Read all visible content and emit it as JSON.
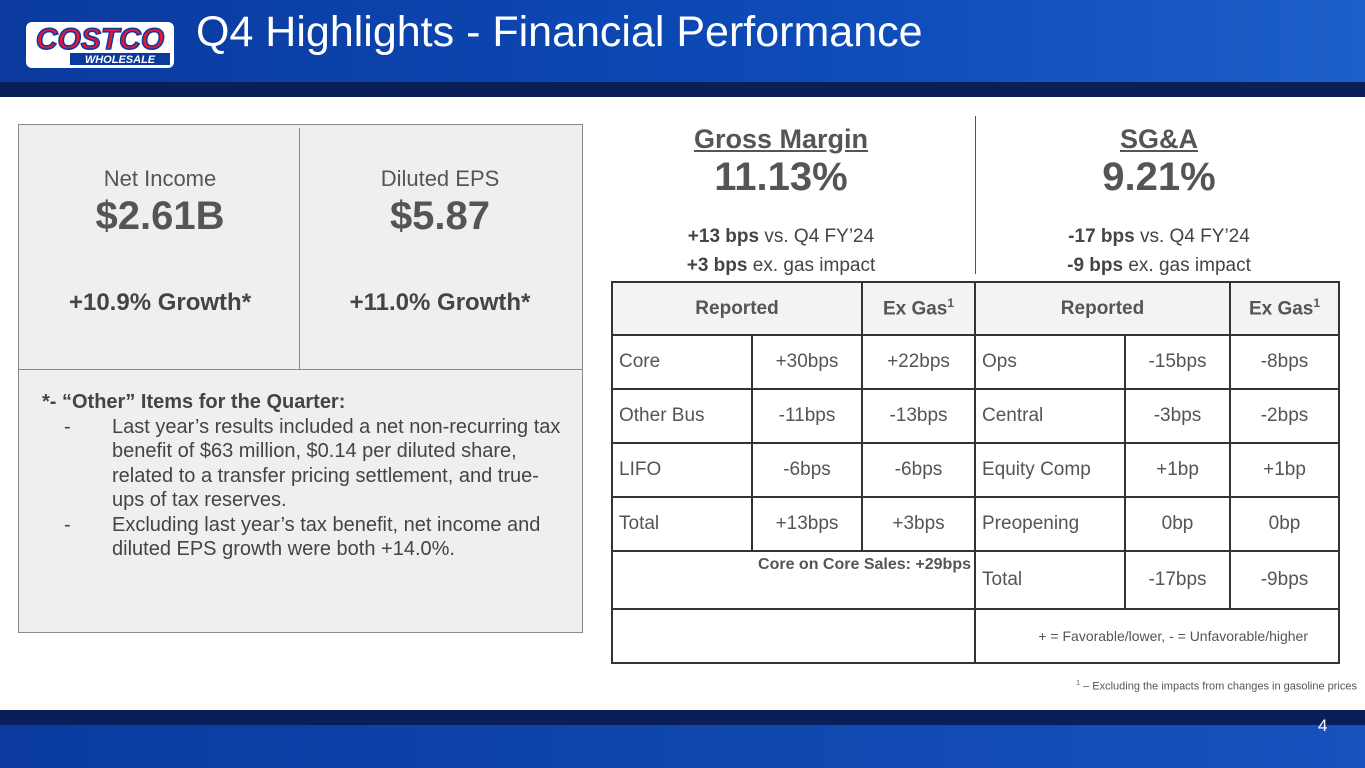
{
  "header": {
    "logo_top": "COSTCO",
    "logo_bottom": "WHOLESALE",
    "title": "Q4 Highlights - Financial Performance"
  },
  "kpis": [
    {
      "label": "Net Income",
      "value": "$2.61B",
      "growth": "+10.9% Growth*"
    },
    {
      "label": "Diluted EPS",
      "value": "$5.87",
      "growth": "+11.0% Growth*"
    }
  ],
  "notes": {
    "heading": "*- “Other” Items for the Quarter:",
    "bullet": "-",
    "items": [
      "Last year’s results included a net non-recurring tax benefit of $63 million, $0.14 per diluted share, related to a transfer pricing settlement, and true-ups of tax reserves.",
      "Excluding last year’s tax benefit, net income and diluted EPS growth were both +14.0%."
    ]
  },
  "metrics": [
    {
      "title": "Gross Margin",
      "value": "11.13%",
      "lines": [
        {
          "bold": "+13 bps",
          "text": " vs. Q4 FY’24"
        },
        {
          "bold": "+3 bps",
          "text": " ex. gas impact"
        }
      ]
    },
    {
      "title": "SG&A",
      "value": "9.21%",
      "lines": [
        {
          "bold": "-17 bps",
          "text": " vs. Q4 FY’24"
        },
        {
          "bold": "-9 bps",
          "text": " ex. gas impact"
        }
      ]
    }
  ],
  "table": {
    "headers": [
      {
        "text": "Reported"
      },
      {
        "text": "Ex Gas",
        "sup": "1"
      },
      {
        "text": "Reported"
      },
      {
        "text": "Ex Gas",
        "sup": "1"
      }
    ],
    "left_rows": [
      [
        "Core",
        "+30bps",
        "+22bps"
      ],
      [
        "Other Bus",
        "-11bps",
        "-13bps"
      ],
      [
        "LIFO",
        "-6bps",
        "-6bps"
      ],
      [
        "Total",
        "+13bps",
        "+3bps"
      ]
    ],
    "right_rows": [
      [
        "Ops",
        "-15bps",
        "-8bps"
      ],
      [
        "Central",
        "-3bps",
        "-2bps"
      ],
      [
        "Equity Comp",
        "+1bp",
        "+1bp"
      ],
      [
        "Preopening",
        "0bp",
        "0bp"
      ],
      [
        "Total",
        "-17bps",
        "-9bps"
      ]
    ],
    "core_on_core": "Core on Core Sales: +29bps",
    "legend": "+ = Favorable/lower, - = Unfavorable/higher"
  },
  "footnote": {
    "mark": "1",
    "text": " – Excluding the impacts from changes in gasoline prices"
  },
  "page_number": "4"
}
